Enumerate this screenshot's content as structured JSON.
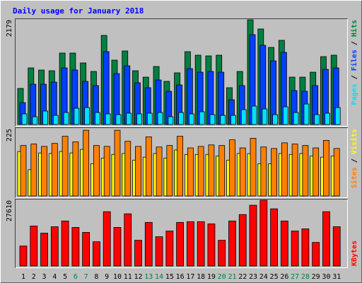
{
  "chart_data": [
    {
      "type": "bar",
      "title": "Daily usage for January 2018",
      "series": [
        {
          "name": "Pages",
          "color": "#00e0ff",
          "values": [
            221,
            162,
            280,
            191,
            250,
            339,
            353,
            250,
            221,
            206,
            236,
            221,
            236,
            250,
            162,
            250,
            221,
            265,
            206,
            191,
            191,
            309,
            383,
            324,
            206,
            368,
            250,
            427,
            206,
            236,
            353
          ]
        },
        {
          "name": "Files",
          "color": "#0040ff",
          "values": [
            456,
            839,
            839,
            883,
            1178,
            1134,
            898,
            810,
            1516,
            1060,
            1222,
            869,
            766,
            927,
            692,
            824,
            1163,
            1089,
            1104,
            1089,
            515,
            810,
            1870,
            1649,
            1325,
            1502,
            707,
            692,
            810,
            1148,
            1178
          ]
        },
        {
          "name": "Hits",
          "color": "#008040",
          "values": [
            751,
            1178,
            1134,
            1119,
            1487,
            1487,
            1281,
            1104,
            1855,
            1340,
            1531,
            1119,
            986,
            1207,
            898,
            1075,
            1516,
            1443,
            1428,
            1443,
            766,
            1104,
            2179,
            1988,
            1605,
            1752,
            986,
            986,
            1089,
            1413,
            1443
          ]
        }
      ],
      "ylim": [
        0,
        2179
      ],
      "yticks": [
        2179
      ],
      "legend_separator": " / "
    },
    {
      "type": "bar",
      "series": [
        {
          "name": "Sites",
          "color": "#ff8000",
          "values": [
            169,
            174,
            166,
            176,
            200,
            181,
            220,
            169,
            166,
            220,
            183,
            166,
            198,
            164,
            169,
            200,
            161,
            166,
            171,
            169,
            188,
            161,
            193,
            164,
            159,
            178,
            174,
            169,
            161,
            186,
            159
          ]
        },
        {
          "name": "Visits",
          "color": "#ffff00",
          "values": [
            149,
            88,
            144,
            142,
            149,
            144,
            156,
            108,
            127,
            139,
            142,
            120,
            130,
            142,
            127,
            154,
            139,
            139,
            139,
            134,
            120,
            142,
            142,
            108,
            108,
            142,
            139,
            142,
            134,
            130,
            134
          ]
        }
      ],
      "ylim": [
        0,
        225
      ],
      "yticks": [
        225
      ],
      "legend_separator": " / "
    },
    {
      "type": "bar",
      "series": [
        {
          "name": "KBytes",
          "color": "#ff0000",
          "values": [
            8403,
            16806,
            13805,
            16506,
            18907,
            16206,
            14105,
            10204,
            22809,
            16206,
            21908,
            10804,
            18307,
            12305,
            14705,
            18307,
            18607,
            18607,
            17706,
            10804,
            18907,
            21608,
            25509,
            27610,
            24009,
            18907,
            14705,
            15606,
            9904,
            22809,
            16506
          ]
        }
      ],
      "ylim": [
        0,
        27610
      ],
      "yticks": [
        27610
      ],
      "categories": [
        "1",
        "2",
        "3",
        "4",
        "5",
        "6",
        "7",
        "8",
        "9",
        "10",
        "11",
        "12",
        "13",
        "14",
        "15",
        "16",
        "17",
        "18",
        "19",
        "20",
        "21",
        "22",
        "23",
        "24",
        "25",
        "26",
        "27",
        "28",
        "29",
        "30",
        "31"
      ],
      "category_colors": [
        "#000000",
        "#000000",
        "#000000",
        "#000000",
        "#000000",
        "#008040",
        "#008040",
        "#000000",
        "#000000",
        "#000000",
        "#000000",
        "#000000",
        "#008040",
        "#008040",
        "#000000",
        "#000000",
        "#000000",
        "#000000",
        "#000000",
        "#008040",
        "#008040",
        "#000000",
        "#000000",
        "#000000",
        "#000000",
        "#000000",
        "#008040",
        "#008040",
        "#000000",
        "#000000",
        "#000000"
      ]
    }
  ]
}
